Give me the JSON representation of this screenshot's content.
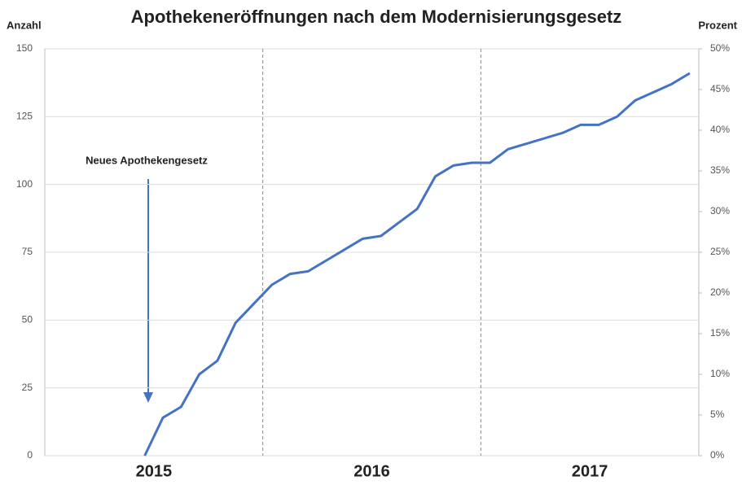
{
  "chart_data": {
    "type": "line",
    "title": "Apothekeneröffnungen nach dem Modernisierungsgesetz",
    "y_label": "Anzahl",
    "y2_label": "Prozent",
    "annotation": "Neues Apothekengesetz",
    "xlim": [
      0,
      36
    ],
    "xticks": [
      {
        "value": 6,
        "label": "2015"
      },
      {
        "value": 18,
        "label": "2016"
      },
      {
        "value": 30,
        "label": "2017"
      }
    ],
    "ylim": [
      0,
      150
    ],
    "yticks": [
      0,
      25,
      50,
      75,
      100,
      125,
      150
    ],
    "y2lim": [
      0,
      50
    ],
    "y2ticks": [
      {
        "value": 0,
        "label": "0%"
      },
      {
        "value": 5,
        "label": "5%"
      },
      {
        "value": 10,
        "label": "10%"
      },
      {
        "value": 15,
        "label": "15%"
      },
      {
        "value": 20,
        "label": "20%"
      },
      {
        "value": 25,
        "label": "25%"
      },
      {
        "value": 30,
        "label": "30%"
      },
      {
        "value": 35,
        "label": "35%"
      },
      {
        "value": 40,
        "label": "40%"
      },
      {
        "value": 45,
        "label": "45%"
      },
      {
        "value": 50,
        "label": "50%"
      }
    ],
    "grid": true,
    "x": [
      5.5,
      6.5,
      7.5,
      8.5,
      9.5,
      10.5,
      11.5,
      12.5,
      13.5,
      14.5,
      15.5,
      16.5,
      17.5,
      18.5,
      19.5,
      20.5,
      21.5,
      22.5,
      23.5,
      24.5,
      25.5,
      26.5,
      27.5,
      28.5,
      29.5,
      30.5,
      31.5,
      32.5,
      33.5,
      34.5,
      35.5
    ],
    "series": [
      {
        "color": "#4472c4",
        "values": [
          0,
          14,
          18,
          30,
          35,
          49,
          56,
          63,
          67,
          68,
          72,
          76,
          80,
          81,
          86,
          91,
          103,
          107,
          108,
          108,
          113,
          115,
          117,
          119,
          122,
          122,
          125,
          131,
          134,
          137,
          141
        ]
      }
    ]
  }
}
